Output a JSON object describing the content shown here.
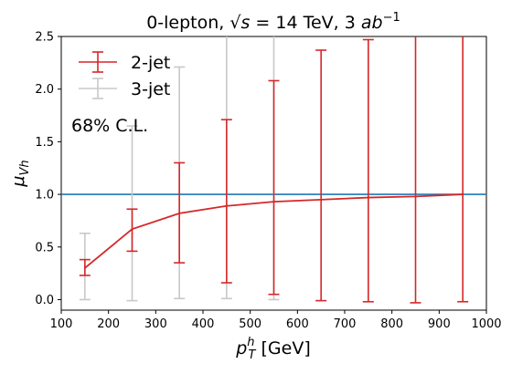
{
  "chart_data": {
    "type": "line",
    "title": "0-lepton, √s = 14 TeV, 3 ab⁻¹",
    "title_parts": {
      "prefix": "0-lepton, ",
      "sqrt_s": "√s",
      "equals": " = 14 TeV, 3 ",
      "unit": "ab",
      "exponent": "−1"
    },
    "xlabel_parts": {
      "base": "p",
      "sup": "h",
      "sub": "T",
      "unit": " [GeV]"
    },
    "ylabel_parts": {
      "base": "μ",
      "sub": "Vh"
    },
    "xlim": [
      100,
      1000
    ],
    "ylim": [
      -0.1,
      2.5
    ],
    "xticks": [
      "100",
      "200",
      "300",
      "400",
      "500",
      "600",
      "700",
      "800",
      "900",
      "1000"
    ],
    "yticks": [
      "0.0",
      "0.5",
      "1.0",
      "1.5",
      "2.0",
      "2.5"
    ],
    "grid": false,
    "legend_position": "top-left",
    "annotation": "68% C.L.",
    "reference_line": {
      "y": 1.0,
      "color": "#1f77b4"
    },
    "series": [
      {
        "name": "2-jet",
        "color": "#d62728",
        "x": [
          150,
          250,
          350,
          450,
          550,
          650,
          750,
          850,
          950
        ],
        "y": [
          0.3,
          0.67,
          0.82,
          0.89,
          0.93,
          0.95,
          0.97,
          0.98,
          1.0
        ],
        "err_low": [
          0.23,
          0.46,
          0.35,
          0.16,
          0.05,
          -0.01,
          -0.02,
          -0.03,
          -0.02
        ],
        "err_high": [
          0.38,
          0.86,
          1.3,
          1.71,
          2.08,
          2.37,
          2.47,
          2.55,
          2.55
        ]
      },
      {
        "name": "3-jet",
        "color": "#c8c8c8",
        "x": [
          150,
          250,
          350,
          450,
          550
        ],
        "err_low": [
          0.0,
          -0.01,
          0.01,
          0.01,
          0.0
        ],
        "err_high": [
          0.63,
          1.65,
          2.21,
          2.55,
          2.55
        ]
      }
    ]
  }
}
